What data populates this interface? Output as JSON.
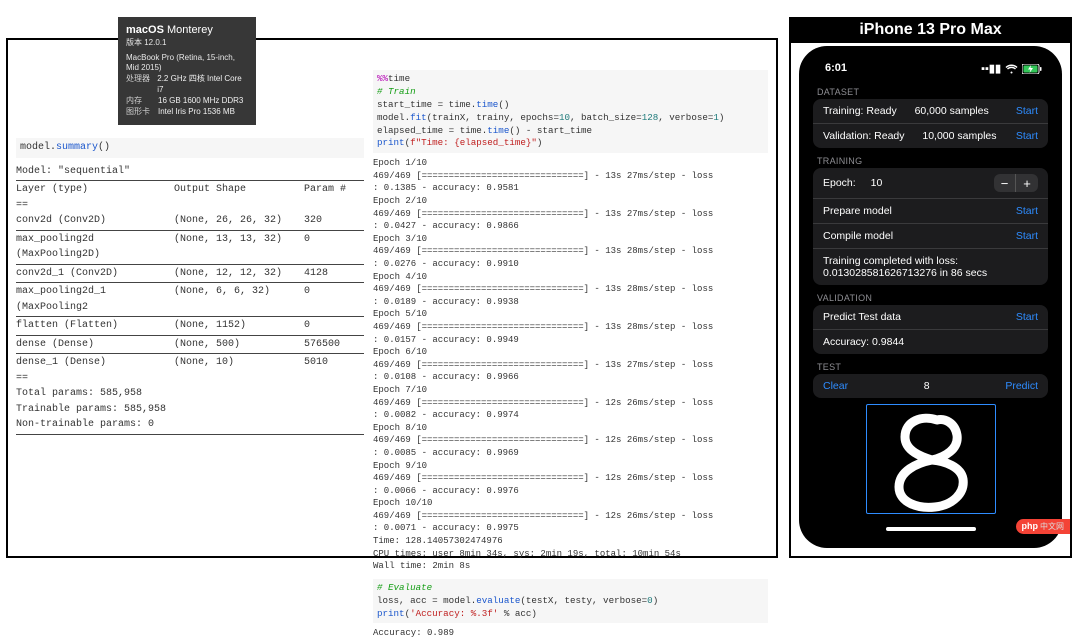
{
  "macos": {
    "title_a": "macOS",
    "title_b": "Monterey",
    "version_lbl": "版本",
    "version": "12.0.1",
    "model": "MacBook Pro (Retina, 15-inch, Mid 2015)",
    "cpu_lbl": "处理器",
    "cpu": "2.2 GHz 四核 Intel Core i7",
    "mem_lbl": "内存",
    "mem": "16 GB 1600 MHz DDR3",
    "gpu_lbl": "图形卡",
    "gpu": "Intel Iris Pro 1536 MB"
  },
  "summary": {
    "call_obj": "model",
    "call_fn": "summary",
    "model_line": "Model: \"sequential\"",
    "headers": {
      "a": "Layer (type)",
      "b": "Output Shape",
      "c": "Param #"
    },
    "layers": [
      {
        "a": "conv2d (Conv2D)",
        "b": "(None, 26, 26, 32)",
        "c": "320"
      },
      {
        "a": "max_pooling2d (MaxPooling2D)",
        "b": "(None, 13, 13, 32)",
        "c": "0"
      },
      {
        "a": "conv2d_1 (Conv2D)",
        "b": "(None, 12, 12, 32)",
        "c": "4128"
      },
      {
        "a": "max_pooling2d_1 (MaxPooling2",
        "b": "(None, 6, 6, 32)",
        "c": "0"
      },
      {
        "a": "flatten (Flatten)",
        "b": "(None, 1152)",
        "c": "0"
      },
      {
        "a": "dense (Dense)",
        "b": "(None, 500)",
        "c": "576500"
      },
      {
        "a": "dense_1 (Dense)",
        "b": "(None, 10)",
        "c": "5010"
      }
    ],
    "totals": [
      "Total params: 585,958",
      "Trainable params: 585,958",
      "Non-trainable params: 0"
    ]
  },
  "train": {
    "code": "%%time\n# Train\nstart_time = time.time()\nmodel.fit(trainX, trainy, epochs=10, batch_size=128, verbose=1)\nelapsed_time = time.time() - start_time\nprint(f\"Time: {elapsed_time}\")",
    "code_html": "<span class=c-mag>%%</span>time\n<span class=c-green># Train</span>\nstart_time = time.<span class=c-blue>time</span>()\nmodel.<span class=c-blue>fit</span>(trainX, trainy, epochs=<span class=c-teal>10</span>, batch_size=<span class=c-teal>128</span>, verbose=<span class=c-teal>1</span>)\nelapsed_time = time.<span class=c-blue>time</span>() - start_time\n<span class=c-blue>print</span>(<span class=c-red>f\"Time: {elapsed_time}\"</span>)",
    "epochs": [
      {
        "n": "1/10",
        "t": "13s 27ms/step",
        "loss": "0.1385",
        "acc": "0.9581"
      },
      {
        "n": "2/10",
        "t": "13s 27ms/step",
        "loss": "0.0427",
        "acc": "0.9866"
      },
      {
        "n": "3/10",
        "t": "13s 28ms/step",
        "loss": "0.0276",
        "acc": "0.9910"
      },
      {
        "n": "4/10",
        "t": "13s 28ms/step",
        "loss": "0.0189",
        "acc": "0.9938"
      },
      {
        "n": "5/10",
        "t": "13s 28ms/step",
        "loss": "0.0157",
        "acc": "0.9949"
      },
      {
        "n": "6/10",
        "t": "13s 27ms/step",
        "loss": "0.0108",
        "acc": "0.9966"
      },
      {
        "n": "7/10",
        "t": "12s 26ms/step",
        "loss": "0.0082",
        "acc": "0.9974"
      },
      {
        "n": "8/10",
        "t": "12s 26ms/step",
        "loss": "0.0085",
        "acc": "0.9969"
      },
      {
        "n": "9/10",
        "t": "12s 26ms/step",
        "loss": "0.0066",
        "acc": "0.9976"
      },
      {
        "n": "10/10",
        "t": "12s 26ms/step",
        "loss": "0.0071",
        "acc": "0.9975"
      }
    ],
    "time_line": "Time: 128.14057302474976",
    "cpu_line": "CPU times: user 8min 34s, sys: 2min 19s, total: 10min 54s",
    "wall_line": "Wall time: 2min 8s",
    "eval_code_html": "<span class=c-green># Evaluate</span>\nloss, acc = model.<span class=c-blue>evaluate</span>(testX, testy, verbose=<span class=c-teal>0</span>)\n<span class=c-blue>print</span>(<span class=c-red>'Accuracy: %.3f'</span> % acc)",
    "eval_out": "Accuracy: 0.989"
  },
  "phone": {
    "title": "iPhone 13 Pro Max",
    "time": "6:01",
    "dataset_hdr": "DATASET",
    "train_row": {
      "label": "Training: Ready",
      "count": "60,000 samples",
      "action": "Start"
    },
    "valid_row": {
      "label": "Validation: Ready",
      "count": "10,000 samples",
      "action": "Start"
    },
    "training_hdr": "TRAINING",
    "epoch_label": "Epoch:",
    "epoch_value": "10",
    "prepare": {
      "label": "Prepare model",
      "action": "Start"
    },
    "compile": {
      "label": "Compile model",
      "action": "Start"
    },
    "done": "Training completed with loss:\n0.013028581626713276 in 86 secs",
    "validation_hdr": "VALIDATION",
    "predict": {
      "label": "Predict Test data",
      "action": "Start"
    },
    "accuracy": "Accuracy: 0.9844",
    "test_hdr": "TEST",
    "clear": "Clear",
    "digit": "8",
    "predict_btn": "Predict",
    "php": "php",
    "php_cn": "中文网"
  },
  "colors": {
    "badge_bg": "#373737",
    "ios_blue": "#2e8cff",
    "ios_cell": "#1c1c1e",
    "ios_gray": "#8e8e93",
    "code_bg": "#f6f6f6"
  }
}
